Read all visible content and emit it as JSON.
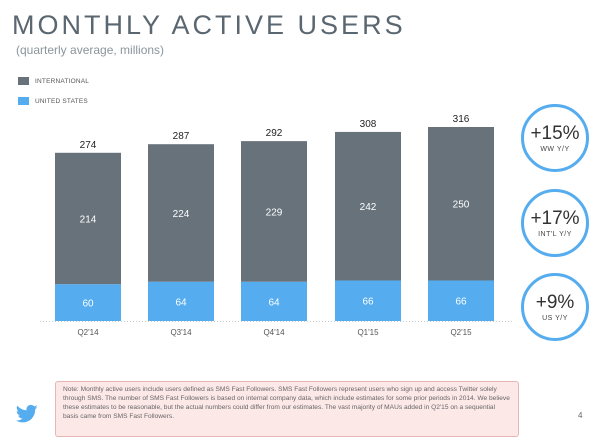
{
  "header": {
    "title": "MONTHLY ACTIVE USERS",
    "subtitle": "(quarterly average, millions)"
  },
  "legend": {
    "international": "INTERNATIONAL",
    "united_states": "UNITED STATES"
  },
  "colors": {
    "international": "#67727b",
    "united_states": "#55acee",
    "kpi_ring": "#55acee",
    "note_background": "#fde8e8"
  },
  "chart_data": {
    "type": "bar",
    "stacked": true,
    "title": "MONTHLY ACTIVE USERS",
    "subtitle": "(quarterly average, millions)",
    "categories": [
      "Q2'14",
      "Q3'14",
      "Q4'14",
      "Q1'15",
      "Q2'15"
    ],
    "series": [
      {
        "name": "UNITED STATES",
        "values": [
          60,
          64,
          64,
          66,
          66
        ]
      },
      {
        "name": "INTERNATIONAL",
        "values": [
          214,
          224,
          229,
          242,
          250
        ]
      }
    ],
    "totals": [
      274,
      287,
      292,
      308,
      316
    ],
    "ylim": [
      0,
      316
    ],
    "legend_position": "top-left",
    "grid": false
  },
  "kpis": [
    {
      "value": "+15%",
      "label": "WW Y/Y"
    },
    {
      "value": "+17%",
      "label": "INT'L Y/Y"
    },
    {
      "value": "+9%",
      "label": "US Y/Y"
    }
  ],
  "note": "Note: Monthly active users include users defined as SMS Fast Followers. SMS Fast Followers represent users who sign up and access Twitter solely through SMS. The number of SMS Fast Followers is based on internal company data, which include estimates for some prior periods in 2014. We believe these estimates to be reasonable, but the actual numbers could differ from our estimates. The vast majority of MAUs added in Q2'15 on a sequential basis came from SMS Fast Followers.",
  "footer": {
    "logo_icon": "twitter-bird-icon",
    "page_number": "4"
  }
}
